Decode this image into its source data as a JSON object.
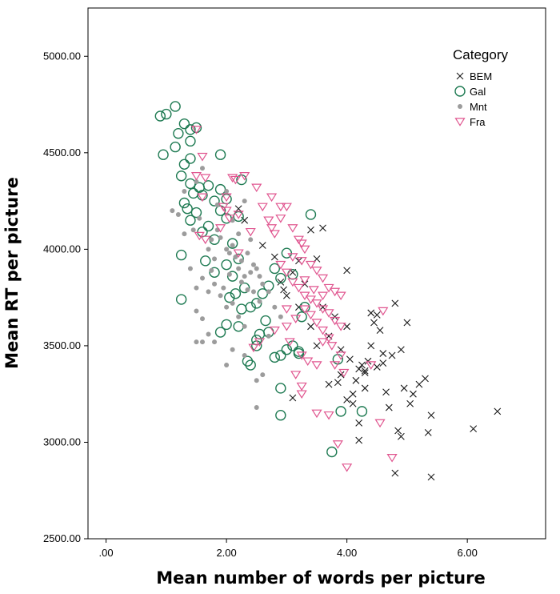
{
  "chart_data": {
    "type": "scatter",
    "title": "",
    "xlabel": "Mean number of words per picture",
    "ylabel": "Mean RT per picture",
    "xlim": [
      -0.3,
      7.3
    ],
    "ylim": [
      2500,
      5250
    ],
    "xticks": [
      0,
      2,
      4,
      6
    ],
    "xtick_labels": [
      ".00",
      "2.00",
      "4.00",
      "6.00"
    ],
    "yticks": [
      2500,
      3000,
      3500,
      4000,
      4500,
      5000
    ],
    "ytick_labels": [
      "2500.00",
      "3000.00",
      "3500.00",
      "4000.00",
      "4500.00",
      "5000.00"
    ],
    "grid": false,
    "legend_title": "Category",
    "legend_position": "top-right",
    "series": [
      {
        "name": "BEM",
        "marker": "x",
        "color": "#1a1a1a",
        "points": [
          [
            2.2,
            4210
          ],
          [
            2.3,
            4150
          ],
          [
            2.6,
            4020
          ],
          [
            2.8,
            3960
          ],
          [
            2.9,
            3830
          ],
          [
            2.95,
            3790
          ],
          [
            3.0,
            3760
          ],
          [
            3.1,
            3880
          ],
          [
            3.2,
            3940
          ],
          [
            3.2,
            3700
          ],
          [
            3.3,
            3820
          ],
          [
            3.4,
            4100
          ],
          [
            3.5,
            3950
          ],
          [
            3.6,
            4110
          ],
          [
            3.4,
            3600
          ],
          [
            3.5,
            3500
          ],
          [
            3.6,
            3700
          ],
          [
            3.7,
            3550
          ],
          [
            3.8,
            3650
          ],
          [
            3.9,
            3480
          ],
          [
            4.0,
            3890
          ],
          [
            3.9,
            3350
          ],
          [
            4.0,
            3220
          ],
          [
            4.1,
            3250
          ],
          [
            4.15,
            3320
          ],
          [
            4.2,
            3100
          ],
          [
            4.25,
            3400
          ],
          [
            4.3,
            3360
          ],
          [
            4.35,
            3420
          ],
          [
            4.4,
            3500
          ],
          [
            4.45,
            3620
          ],
          [
            4.5,
            3660
          ],
          [
            4.55,
            3580
          ],
          [
            4.6,
            3410
          ],
          [
            4.65,
            3260
          ],
          [
            4.7,
            3180
          ],
          [
            4.75,
            3450
          ],
          [
            4.8,
            3720
          ],
          [
            4.85,
            3060
          ],
          [
            4.9,
            3480
          ],
          [
            4.95,
            3280
          ],
          [
            5.0,
            3620
          ],
          [
            5.05,
            3200
          ],
          [
            5.1,
            3250
          ],
          [
            5.2,
            3300
          ],
          [
            5.3,
            3330
          ],
          [
            5.35,
            3050
          ],
          [
            5.4,
            3140
          ],
          [
            4.2,
            3010
          ],
          [
            4.3,
            3370
          ],
          [
            4.05,
            3430
          ],
          [
            3.85,
            3310
          ],
          [
            4.1,
            3200
          ],
          [
            4.6,
            3460
          ],
          [
            4.8,
            2840
          ],
          [
            5.4,
            2820
          ],
          [
            6.1,
            3070
          ],
          [
            6.5,
            3160
          ],
          [
            4.9,
            3030
          ],
          [
            4.4,
            3670
          ],
          [
            4.2,
            3380
          ],
          [
            4.5,
            3390
          ],
          [
            3.1,
            3230
          ],
          [
            3.7,
            3300
          ],
          [
            4.0,
            3600
          ],
          [
            4.3,
            3280
          ]
        ]
      },
      {
        "name": "Gal",
        "marker": "circle",
        "color": "#1e7a52",
        "points": [
          [
            0.9,
            4690
          ],
          [
            1.0,
            4700
          ],
          [
            0.95,
            4490
          ],
          [
            1.15,
            4530
          ],
          [
            1.2,
            4600
          ],
          [
            1.15,
            4740
          ],
          [
            1.3,
            4650
          ],
          [
            1.4,
            4620
          ],
          [
            1.4,
            4560
          ],
          [
            1.5,
            4630
          ],
          [
            1.3,
            4440
          ],
          [
            1.4,
            4470
          ],
          [
            1.25,
            4380
          ],
          [
            1.4,
            4340
          ],
          [
            1.45,
            4290
          ],
          [
            1.55,
            4320
          ],
          [
            1.6,
            4280
          ],
          [
            1.7,
            4330
          ],
          [
            1.8,
            4250
          ],
          [
            1.9,
            4490
          ],
          [
            1.9,
            4310
          ],
          [
            2.0,
            4260
          ],
          [
            1.3,
            4240
          ],
          [
            1.35,
            4210
          ],
          [
            1.4,
            4150
          ],
          [
            1.5,
            4190
          ],
          [
            1.6,
            4090
          ],
          [
            1.7,
            4120
          ],
          [
            1.8,
            4050
          ],
          [
            1.9,
            4200
          ],
          [
            2.0,
            4160
          ],
          [
            2.1,
            4030
          ],
          [
            2.2,
            4170
          ],
          [
            2.25,
            4360
          ],
          [
            1.25,
            3970
          ],
          [
            1.65,
            3940
          ],
          [
            1.8,
            3880
          ],
          [
            2.0,
            3920
          ],
          [
            2.1,
            3860
          ],
          [
            2.2,
            3950
          ],
          [
            2.3,
            3800
          ],
          [
            2.4,
            3700
          ],
          [
            2.5,
            3720
          ],
          [
            2.6,
            3770
          ],
          [
            2.7,
            3810
          ],
          [
            2.8,
            3900
          ],
          [
            2.9,
            3850
          ],
          [
            3.0,
            3980
          ],
          [
            2.05,
            3750
          ],
          [
            2.15,
            3770
          ],
          [
            2.2,
            3600
          ],
          [
            2.0,
            3610
          ],
          [
            1.9,
            3570
          ],
          [
            2.25,
            3690
          ],
          [
            2.35,
            3420
          ],
          [
            2.4,
            3400
          ],
          [
            2.5,
            3500
          ],
          [
            2.55,
            3560
          ],
          [
            2.65,
            3630
          ],
          [
            2.7,
            3570
          ],
          [
            2.8,
            3440
          ],
          [
            2.9,
            3450
          ],
          [
            3.0,
            3480
          ],
          [
            3.1,
            3500
          ],
          [
            3.2,
            3470
          ],
          [
            3.25,
            3650
          ],
          [
            3.3,
            3700
          ],
          [
            3.4,
            4180
          ],
          [
            2.9,
            3280
          ],
          [
            2.9,
            3140
          ],
          [
            3.1,
            3870
          ],
          [
            3.2,
            3460
          ],
          [
            3.85,
            3430
          ],
          [
            3.9,
            3160
          ],
          [
            4.25,
            3160
          ],
          [
            3.75,
            2950
          ],
          [
            1.25,
            3740
          ],
          [
            2.5,
            3530
          ]
        ]
      },
      {
        "name": "Mnt",
        "marker": "dot",
        "color": "#9c9c9c",
        "points": [
          [
            1.1,
            4200
          ],
          [
            1.2,
            4180
          ],
          [
            1.3,
            4300
          ],
          [
            1.45,
            4100
          ],
          [
            1.5,
            4350
          ],
          [
            1.6,
            4420
          ],
          [
            1.7,
            4000
          ],
          [
            1.75,
            4050
          ],
          [
            1.8,
            3950
          ],
          [
            1.85,
            4100
          ],
          [
            1.9,
            4060
          ],
          [
            2.0,
            4000
          ],
          [
            2.05,
            3980
          ],
          [
            2.1,
            4020
          ],
          [
            2.15,
            3960
          ],
          [
            2.2,
            3900
          ],
          [
            2.25,
            3940
          ],
          [
            2.3,
            3860
          ],
          [
            2.35,
            3980
          ],
          [
            2.4,
            3880
          ],
          [
            2.45,
            3920
          ],
          [
            2.5,
            3900
          ],
          [
            2.55,
            3860
          ],
          [
            2.6,
            3820
          ],
          [
            2.7,
            3780
          ],
          [
            1.5,
            3800
          ],
          [
            1.6,
            3850
          ],
          [
            1.7,
            3780
          ],
          [
            1.8,
            3820
          ],
          [
            1.9,
            3760
          ],
          [
            2.0,
            3700
          ],
          [
            2.1,
            3720
          ],
          [
            2.2,
            3650
          ],
          [
            2.3,
            3600
          ],
          [
            1.5,
            3680
          ],
          [
            1.6,
            3640
          ],
          [
            1.7,
            3560
          ],
          [
            1.8,
            3520
          ],
          [
            1.6,
            3520
          ],
          [
            2.0,
            3400
          ],
          [
            2.1,
            3480
          ],
          [
            2.3,
            3450
          ],
          [
            2.5,
            3320
          ],
          [
            2.6,
            3350
          ],
          [
            2.1,
            4150
          ],
          [
            2.3,
            4250
          ],
          [
            1.85,
            4230
          ],
          [
            2.0,
            4300
          ],
          [
            1.95,
            3800
          ],
          [
            2.45,
            3780
          ],
          [
            2.55,
            3730
          ],
          [
            2.05,
            3870
          ],
          [
            2.35,
            3790
          ],
          [
            1.4,
            3900
          ],
          [
            1.3,
            4080
          ],
          [
            2.7,
            3550
          ],
          [
            2.8,
            3700
          ],
          [
            2.2,
            4080
          ],
          [
            2.4,
            4050
          ],
          [
            1.55,
            4160
          ],
          [
            2.25,
            3830
          ],
          [
            1.75,
            3890
          ],
          [
            2.9,
            3650
          ],
          [
            2.5,
            3180
          ],
          [
            1.5,
            3520
          ]
        ]
      },
      {
        "name": "Fra",
        "marker": "triangle-down",
        "color": "#e0558f",
        "points": [
          [
            1.5,
            4620
          ],
          [
            1.6,
            4480
          ],
          [
            1.5,
            4380
          ],
          [
            1.65,
            4370
          ],
          [
            1.6,
            4270
          ],
          [
            1.95,
            4220
          ],
          [
            2.05,
            4160
          ],
          [
            2.1,
            4370
          ],
          [
            2.15,
            4360
          ],
          [
            2.3,
            4380
          ],
          [
            2.5,
            4320
          ],
          [
            2.6,
            4220
          ],
          [
            2.7,
            4150
          ],
          [
            2.75,
            4110
          ],
          [
            2.8,
            4080
          ],
          [
            2.9,
            4220
          ],
          [
            3.0,
            4220
          ],
          [
            2.75,
            4270
          ],
          [
            1.55,
            4070
          ],
          [
            1.65,
            4050
          ],
          [
            2.0,
            4200
          ],
          [
            2.2,
            4180
          ],
          [
            2.4,
            4090
          ],
          [
            2.9,
            4160
          ],
          [
            3.1,
            4110
          ],
          [
            3.2,
            4050
          ],
          [
            3.3,
            4000
          ],
          [
            3.25,
            3940
          ],
          [
            3.4,
            3920
          ],
          [
            3.5,
            3890
          ],
          [
            3.6,
            3850
          ],
          [
            3.7,
            3800
          ],
          [
            3.8,
            3780
          ],
          [
            2.9,
            3920
          ],
          [
            3.0,
            3880
          ],
          [
            3.1,
            3830
          ],
          [
            3.2,
            3800
          ],
          [
            3.3,
            3760
          ],
          [
            3.4,
            3740
          ],
          [
            3.5,
            3720
          ],
          [
            3.6,
            3690
          ],
          [
            3.7,
            3670
          ],
          [
            3.8,
            3630
          ],
          [
            3.9,
            3600
          ],
          [
            3.3,
            3690
          ],
          [
            3.4,
            3660
          ],
          [
            3.5,
            3620
          ],
          [
            3.6,
            3580
          ],
          [
            3.7,
            3540
          ],
          [
            3.25,
            3450
          ],
          [
            3.35,
            3420
          ],
          [
            3.5,
            3400
          ],
          [
            3.8,
            3400
          ],
          [
            3.9,
            3450
          ],
          [
            3.15,
            3350
          ],
          [
            3.25,
            3290
          ],
          [
            3.25,
            3250
          ],
          [
            3.7,
            3140
          ],
          [
            3.5,
            3150
          ],
          [
            3.85,
            2990
          ],
          [
            4.0,
            2870
          ],
          [
            4.75,
            2920
          ],
          [
            4.55,
            3100
          ],
          [
            4.6,
            3680
          ],
          [
            3.6,
            3520
          ],
          [
            3.75,
            3500
          ],
          [
            3.95,
            3360
          ],
          [
            3.0,
            3600
          ],
          [
            2.8,
            3580
          ],
          [
            2.45,
            3490
          ],
          [
            2.55,
            3520
          ],
          [
            3.05,
            3520
          ],
          [
            3.3,
            3840
          ],
          [
            3.45,
            3790
          ],
          [
            3.6,
            3760
          ],
          [
            3.9,
            3760
          ],
          [
            3.25,
            4030
          ],
          [
            3.1,
            3960
          ],
          [
            4.4,
            3400
          ],
          [
            2.0,
            4270
          ],
          [
            1.9,
            4110
          ],
          [
            2.2,
            3980
          ],
          [
            3.0,
            3690
          ],
          [
            3.15,
            3640
          ]
        ]
      }
    ]
  }
}
